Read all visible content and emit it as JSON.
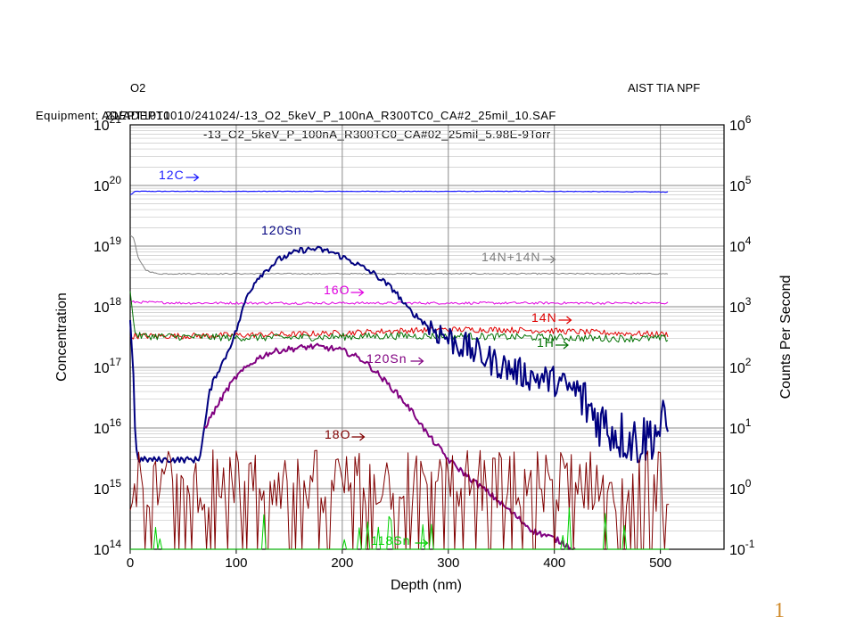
{
  "header": {
    "left_top": "O2",
    "right_top": "AIST TIA NPF",
    "line1a": "Equipment: ADEPT1010",
    "line1b": "21/ADEPT1010/241024/-13_O2_5keV_P_100nA_R300TC0_CA#2_25mil_10.SAF",
    "line2": "-13_O2_5keV_P_100nA_R300TC0_CA#02_25mil_5.98E-9Torr"
  },
  "slide_number": "1",
  "chart_data": {
    "type": "line",
    "xlabel": "Depth (nm)",
    "ylabel_left": "Concentration",
    "ylabel_right": "Counts Per Second",
    "xlim": [
      0,
      560
    ],
    "x_ticks": [
      0,
      100,
      200,
      300,
      400,
      500
    ],
    "y_left_log": true,
    "y_left_lim": [
      100000000000000.0,
      1e+21
    ],
    "y_left_ticks": [
      {
        "base": "10",
        "exp": "14"
      },
      {
        "base": "10",
        "exp": "15"
      },
      {
        "base": "10",
        "exp": "16"
      },
      {
        "base": "10",
        "exp": "17"
      },
      {
        "base": "10",
        "exp": "18"
      },
      {
        "base": "10",
        "exp": "19"
      },
      {
        "base": "10",
        "exp": "20"
      },
      {
        "base": "10",
        "exp": "21"
      }
    ],
    "y_right_log": true,
    "y_right_lim": [
      0.1,
      1000000
    ],
    "y_right_ticks": [
      {
        "base": "10",
        "exp": "-1"
      },
      {
        "base": "10",
        "exp": "0"
      },
      {
        "base": "10",
        "exp": "1"
      },
      {
        "base": "10",
        "exp": "2"
      },
      {
        "base": "10",
        "exp": "3"
      },
      {
        "base": "10",
        "exp": "4"
      },
      {
        "base": "10",
        "exp": "5"
      },
      {
        "base": "10",
        "exp": "6"
      }
    ],
    "grid": true,
    "series": [
      {
        "name": "12C",
        "axis": "right",
        "color": "#1a1aff",
        "label_color": "#1a1aff",
        "x": [
          0,
          5,
          50,
          100,
          200,
          300,
          400,
          508
        ],
        "y": [
          70000,
          80000,
          80000,
          80000,
          80000,
          80000,
          80000,
          78000
        ]
      },
      {
        "name": "14N+14N",
        "axis": "right",
        "color": "#808080",
        "label_color": "#808080",
        "x": [
          0,
          3,
          8,
          15,
          25,
          50,
          100,
          200,
          300,
          400,
          508
        ],
        "y": [
          15000,
          14000,
          6000,
          4000,
          3500,
          3500,
          3500,
          3500,
          3500,
          3500,
          3500
        ]
      },
      {
        "name": "16O",
        "axis": "right",
        "color": "#e000e0",
        "label_color": "#e000e0",
        "x": [
          0,
          50,
          100,
          200,
          300,
          400,
          508
        ],
        "y": [
          1200,
          1150,
          1150,
          1150,
          1150,
          1150,
          1150
        ]
      },
      {
        "name": "14N",
        "axis": "right",
        "color": "#e00000",
        "label_color": "#e00000",
        "x": [
          0,
          50,
          100,
          150,
          200,
          250,
          300,
          350,
          400,
          450,
          508
        ],
        "y": [
          330,
          330,
          340,
          350,
          370,
          400,
          420,
          420,
          400,
          370,
          350
        ]
      },
      {
        "name": "1H",
        "axis": "right",
        "color": "#007000",
        "label_color": "#007000",
        "x": [
          0,
          2,
          4,
          8,
          50,
          100,
          150,
          200,
          250,
          300,
          350,
          400,
          450,
          508
        ],
        "y": [
          2000,
          800,
          400,
          330,
          320,
          310,
          310,
          320,
          330,
          330,
          320,
          310,
          300,
          300
        ]
      },
      {
        "name": "120Sn",
        "axis": "right",
        "color": "#000080",
        "label_color": "#000080",
        "x": [
          0,
          3,
          5,
          8,
          50,
          65,
          70,
          75,
          80,
          90,
          100,
          110,
          120,
          140,
          160,
          175,
          190,
          210,
          230,
          250,
          260,
          270,
          280,
          290,
          300,
          320,
          340,
          360,
          380,
          400,
          420,
          440,
          460,
          480,
          508
        ],
        "y": [
          600,
          80,
          5,
          3,
          3,
          3,
          10,
          40,
          70,
          150,
          400,
          1500,
          3000,
          6000,
          8500,
          9000,
          8000,
          5500,
          3500,
          1800,
          1000,
          700,
          500,
          400,
          300,
          200,
          130,
          90,
          70,
          60,
          40,
          15,
          8,
          6,
          12
        ]
      },
      {
        "name": "120Sn",
        "axis": "left",
        "color": "#800080",
        "label_color": "#800080",
        "x": [
          70,
          80,
          90,
          100,
          110,
          120,
          130,
          140,
          150,
          160,
          170,
          175,
          180,
          190,
          200,
          210,
          220,
          230,
          240,
          250,
          260,
          270,
          280,
          290,
          300,
          320,
          340,
          360,
          380,
          400,
          420
        ],
        "y": [
          1e+16,
          2e+16,
          4e+16,
          7e+16,
          1e+17,
          1.4e+17,
          1.7e+17,
          1.9e+17,
          2e+17,
          2.1e+17,
          2.2e+17,
          2.2e+17,
          2.15e+17,
          2.05e+17,
          1.9e+17,
          1.6e+17,
          1.3e+17,
          9e+16,
          6e+16,
          4e+16,
          2.5e+16,
          1.5e+16,
          8000000000000000.0,
          5000000000000000.0,
          3000000000000000.0,
          1500000000000000.0,
          800000000000000.0,
          400000000000000.0,
          200000000000000.0,
          150000000000000.0,
          100000000000000.0
        ]
      },
      {
        "name": "18O",
        "axis": "right",
        "color": "#800000",
        "label_color": "#800000",
        "x": [
          0,
          100,
          200,
          300,
          400,
          508
        ],
        "y": [
          2,
          2,
          2,
          2,
          2,
          2
        ]
      },
      {
        "name": "118Sn",
        "axis": "right",
        "color": "#00d000",
        "label_color": "#00d000",
        "x": [
          0,
          100,
          200,
          300,
          400,
          508
        ],
        "y": [
          0.1,
          0.1,
          0.1,
          0.1,
          0.1,
          0.1
        ]
      }
    ]
  }
}
